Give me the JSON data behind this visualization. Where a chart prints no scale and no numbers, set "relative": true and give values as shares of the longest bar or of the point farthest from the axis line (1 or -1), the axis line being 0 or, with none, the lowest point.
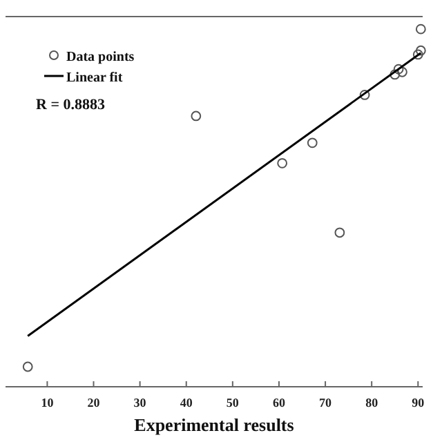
{
  "chart_data": {
    "type": "scatter",
    "xlabel": "Experimental results",
    "relative": true,
    "xlim": [
      1,
      91
    ],
    "xticks": [
      10,
      20,
      30,
      40,
      50,
      60,
      70,
      80,
      90
    ],
    "legend": "top left",
    "grid": false,
    "series": [
      {
        "name": "Data points",
        "marker": "circle",
        "color": "#555555",
        "x": [
          5.8,
          42.1,
          60.7,
          67.2,
          73.1,
          78.5,
          85,
          85.8,
          86.6,
          90,
          90.6,
          90.6
        ],
        "values": [
          0.056,
          0.757,
          0.625,
          0.682,
          0.431,
          0.816,
          0.873,
          0.888,
          0.88,
          0.929,
          0.94,
          1
        ]
      },
      {
        "name": "Linear fit",
        "type": "line",
        "marker": "none",
        "color": "#000000",
        "x": [
          5.8,
          90.6
        ],
        "values": [
          0.142,
          0.933
        ]
      }
    ],
    "annotations": [
      "R = 0.8883"
    ]
  }
}
